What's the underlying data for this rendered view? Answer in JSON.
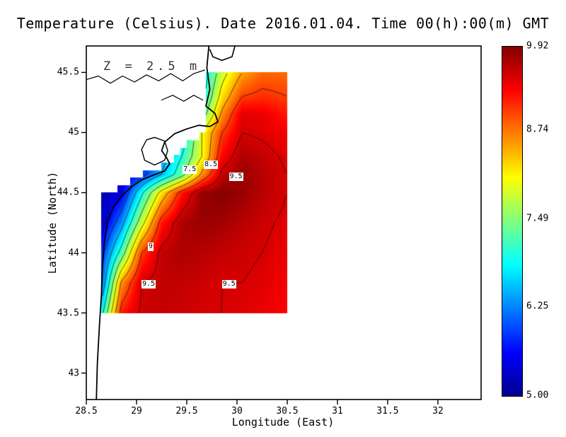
{
  "title": "Temperature (Celsius). Date 2016.01.04. Time 00(h):00(m) GMT",
  "annotation": "Z = 2.5 m",
  "axes": {
    "x": {
      "label": "Longitude (East)",
      "range": [
        28.5,
        32.43
      ],
      "ticks": [
        28.5,
        29,
        29.5,
        30,
        30.5,
        31,
        31.5,
        32
      ],
      "tick_labels": [
        "28.5",
        "29",
        "29.5",
        "30",
        "30.5",
        "31",
        "31.5",
        "32"
      ]
    },
    "y": {
      "label": "Latitude (North)",
      "range": [
        42.78,
        45.72
      ],
      "ticks": [
        43,
        43.5,
        44,
        44.5,
        45,
        45.5
      ],
      "tick_labels": [
        "43",
        "43.5",
        "44",
        "44.5",
        "45",
        "45.5"
      ]
    }
  },
  "colorbar": {
    "min": 5.0,
    "max": 9.92,
    "tick_values": [
      9.92,
      8.74,
      7.49,
      6.25,
      5.0
    ],
    "tick_labels": [
      "9.92",
      "8.74",
      "7.49",
      "6.25",
      "5.00"
    ],
    "colormap": [
      {
        "t": 0.0,
        "color": [
          0,
          0,
          144
        ]
      },
      {
        "t": 0.125,
        "color": [
          0,
          0,
          255
        ]
      },
      {
        "t": 0.375,
        "color": [
          0,
          255,
          255
        ]
      },
      {
        "t": 0.625,
        "color": [
          255,
          255,
          0
        ]
      },
      {
        "t": 0.875,
        "color": [
          255,
          0,
          0
        ]
      },
      {
        "t": 1.0,
        "color": [
          128,
          0,
          0
        ]
      }
    ]
  },
  "chart_data": {
    "type": "heatmap",
    "units": "Celsius",
    "x_name": "longitude_east",
    "y_name": "latitude_north",
    "bounds": {
      "lon": [
        28.65,
        30.5
      ],
      "lat": [
        43.5,
        45.5
      ]
    },
    "lons": [
      28.65,
      28.85,
      29.05,
      29.25,
      29.45,
      29.65,
      29.85,
      30.05,
      30.25,
      30.5
    ],
    "lats": [
      43.5,
      43.75,
      44.0,
      44.25,
      44.5,
      44.65,
      44.8,
      45.0,
      45.15,
      45.3,
      45.5
    ],
    "values": [
      [
        6.8,
        9.2,
        9.55,
        9.6,
        9.55,
        9.5,
        9.5,
        9.45,
        9.4,
        9.3
      ],
      [
        6.0,
        8.6,
        9.5,
        9.6,
        9.6,
        9.55,
        9.5,
        9.5,
        9.45,
        9.35
      ],
      [
        5.8,
        7.2,
        9.0,
        9.6,
        9.7,
        9.65,
        9.6,
        9.55,
        9.5,
        9.4
      ],
      [
        5.3,
        6.3,
        7.8,
        9.2,
        9.7,
        9.8,
        9.75,
        9.65,
        9.55,
        9.45
      ],
      [
        5.1,
        5.5,
        6.9,
        8.2,
        9.2,
        9.8,
        9.9,
        9.8,
        9.65,
        9.5
      ],
      [
        5.0,
        5.3,
        5.8,
        6.5,
        7.3,
        8.6,
        9.6,
        9.8,
        9.65,
        9.5
      ],
      [
        null,
        null,
        5.8,
        6.3,
        7.0,
        8.0,
        9.3,
        9.7,
        9.6,
        9.45
      ],
      [
        null,
        null,
        null,
        6.2,
        6.6,
        8.0,
        9.0,
        9.5,
        9.45,
        9.35
      ],
      [
        null,
        null,
        null,
        null,
        6.5,
        7.2,
        8.6,
        9.45,
        9.4,
        9.2
      ],
      [
        null,
        null,
        null,
        null,
        null,
        6.8,
        8.2,
        9.0,
        9.1,
        9.0
      ],
      [
        null,
        null,
        null,
        null,
        null,
        6.6,
        7.8,
        8.5,
        8.8,
        8.8
      ]
    ],
    "value_range": [
      5.0,
      9.92
    ],
    "contour_levels": [
      5.5,
      6,
      6.5,
      7,
      7.5,
      8,
      8.5,
      9,
      9.5
    ],
    "contour_labels": [
      {
        "text": "7.5",
        "lon": 29.53,
        "lat": 44.69
      },
      {
        "text": "8.5",
        "lon": 29.74,
        "lat": 44.73
      },
      {
        "text": "9.5",
        "lon": 29.99,
        "lat": 44.63
      },
      {
        "text": "9",
        "lon": 29.14,
        "lat": 44.05
      },
      {
        "text": "9.5",
        "lon": 29.12,
        "lat": 43.74
      },
      {
        "text": "9.5",
        "lon": 29.92,
        "lat": 43.74
      }
    ],
    "coast_mask": {
      "quantize_deg": 0.0625,
      "west_boundary": [
        {
          "lat": 44.45,
          "lon": 28.6
        },
        {
          "lat": 44.78,
          "lon": 29.36
        },
        {
          "lat": 45.02,
          "lon": 29.68
        },
        {
          "lat": 45.72,
          "lon": 29.74
        }
      ]
    }
  },
  "coastline": {
    "polylines": [
      {
        "name": "coastline-main",
        "width": 1.8,
        "points": [
          [
            29.72,
            45.72
          ],
          [
            29.7,
            45.54
          ],
          [
            29.73,
            45.36
          ],
          [
            29.69,
            45.22
          ],
          [
            29.78,
            45.16
          ],
          [
            29.81,
            45.09
          ],
          [
            29.73,
            45.05
          ],
          [
            29.62,
            45.06
          ],
          [
            29.5,
            45.03
          ],
          [
            29.38,
            44.99
          ],
          [
            29.28,
            44.92
          ],
          [
            29.25,
            44.85
          ],
          [
            29.3,
            44.79
          ],
          [
            29.33,
            44.74
          ],
          [
            29.28,
            44.68
          ],
          [
            29.18,
            44.65
          ],
          [
            29.06,
            44.61
          ],
          [
            28.95,
            44.55
          ],
          [
            28.85,
            44.47
          ],
          [
            28.77,
            44.38
          ],
          [
            28.71,
            44.26
          ],
          [
            28.68,
            44.09
          ],
          [
            28.66,
            43.89
          ],
          [
            28.65,
            43.65
          ],
          [
            28.63,
            43.39
          ],
          [
            28.61,
            43.08
          ],
          [
            28.6,
            42.78
          ]
        ]
      },
      {
        "name": "coastline-delta-mouth",
        "width": 1.6,
        "points": [
          [
            29.98,
            45.72
          ],
          [
            29.95,
            45.63
          ],
          [
            29.85,
            45.6
          ],
          [
            29.76,
            45.63
          ],
          [
            29.73,
            45.69
          ]
        ]
      },
      {
        "name": "river-danube",
        "width": 1.2,
        "points": [
          [
            28.5,
            45.44
          ],
          [
            28.62,
            45.47
          ],
          [
            28.74,
            45.41
          ],
          [
            28.86,
            45.47
          ],
          [
            28.98,
            45.42
          ],
          [
            29.1,
            45.48
          ],
          [
            29.22,
            45.43
          ],
          [
            29.34,
            45.49
          ],
          [
            29.46,
            45.43
          ],
          [
            29.57,
            45.49
          ],
          [
            29.68,
            45.52
          ]
        ]
      },
      {
        "name": "river-channel",
        "width": 1.2,
        "points": [
          [
            29.25,
            45.27
          ],
          [
            29.36,
            45.31
          ],
          [
            29.47,
            45.26
          ],
          [
            29.57,
            45.31
          ],
          [
            29.66,
            45.27
          ]
        ]
      },
      {
        "name": "lagoon-outline",
        "width": 1.4,
        "points": [
          [
            29.18,
            44.96
          ],
          [
            29.28,
            44.93
          ],
          [
            29.31,
            44.85
          ],
          [
            29.28,
            44.77
          ],
          [
            29.18,
            44.73
          ],
          [
            29.08,
            44.77
          ],
          [
            29.05,
            44.86
          ],
          [
            29.1,
            44.94
          ],
          [
            29.18,
            44.96
          ]
        ]
      }
    ]
  }
}
